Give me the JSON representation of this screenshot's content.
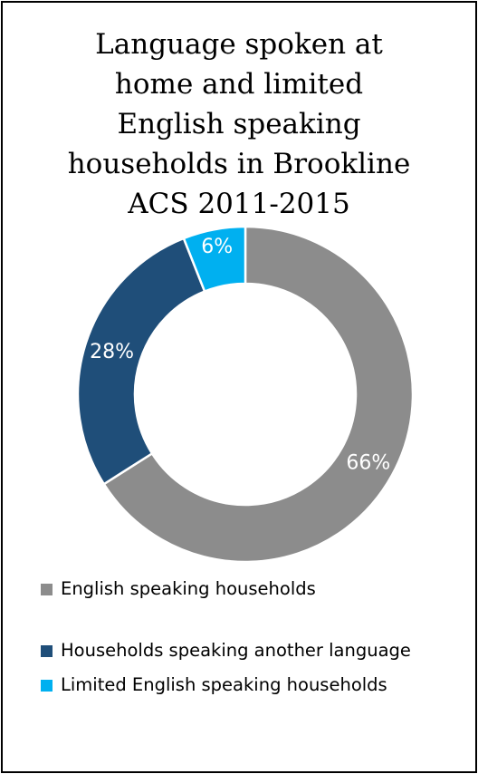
{
  "chart_data": {
    "type": "donut",
    "title_lines": [
      "Language spoken at",
      "home and limited",
      "English speaking",
      "households in Brookline",
      "ACS 2011-2015"
    ],
    "categories": [
      "English speaking households",
      "Households speaking another language",
      "Limited English speaking households"
    ],
    "values": [
      66,
      28,
      6
    ],
    "labels": [
      "66%",
      "28%",
      "6%"
    ],
    "colors": [
      "#8c8c8c",
      "#1f4e79",
      "#00b0f0"
    ],
    "legend_position": "bottom"
  }
}
